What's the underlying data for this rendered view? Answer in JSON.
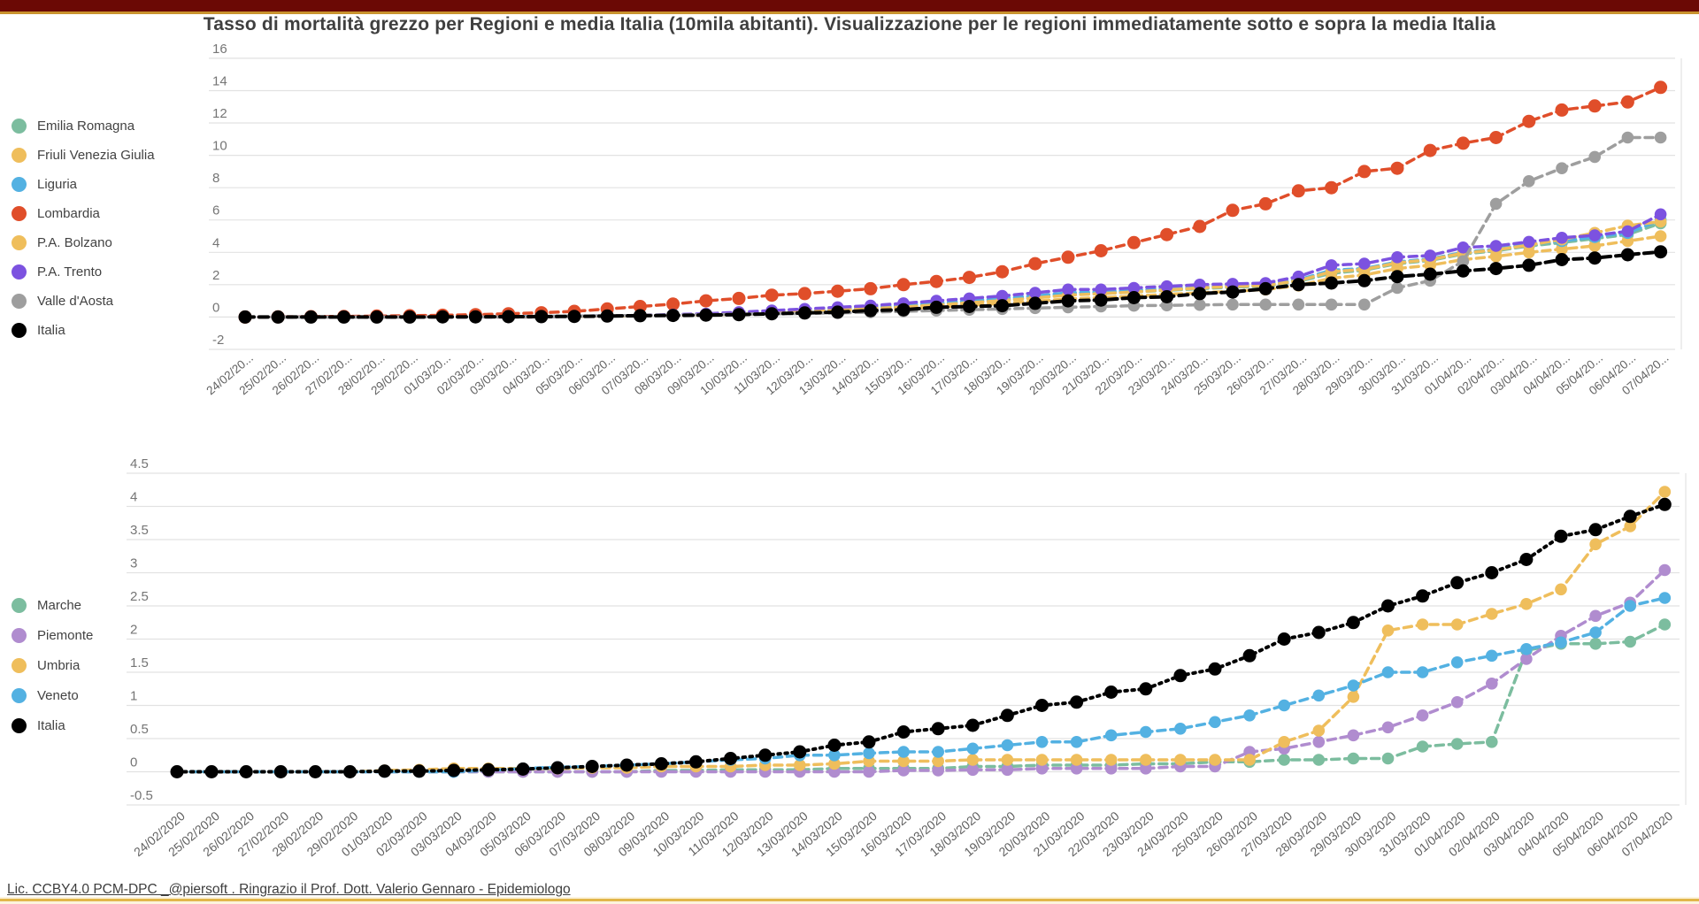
{
  "page": {
    "title": "Tasso di mortalità grezzo per Regioni e media Italia (10mila abitanti). Visualizzazione per le regioni immediatamente sotto e sopra la media Italia",
    "footer": "Lic. CCBY4.0 PCM-DPC _@piersoft . Ringrazio il Prof. Dott. Valerio Gennaro - Epidemiologo",
    "colors": {
      "top_bar": "#6B0905",
      "gold_line": "#C9932E",
      "bottom_strip": "#FCF3DC",
      "grid": "#E2E2E2",
      "axis_text": "#757575",
      "x_label_text": "#616161",
      "title_text": "#3F3F3F"
    }
  },
  "chart_data": [
    {
      "name": "top-chart",
      "type": "line",
      "title": "",
      "xlabel": "",
      "ylabel": "",
      "grid": true,
      "legend_position": "left",
      "marker": "circle",
      "line_style": "dashed",
      "ylim": [
        -2,
        16
      ],
      "yticks": [
        16,
        14,
        12,
        10,
        8,
        6,
        4,
        2,
        0,
        -2
      ],
      "categories": [
        "24/02/20...",
        "25/02/20...",
        "26/02/20...",
        "27/02/20...",
        "28/02/20...",
        "29/02/20...",
        "01/03/20...",
        "02/03/20...",
        "03/03/20...",
        "04/03/20...",
        "05/03/20...",
        "06/03/20...",
        "07/03/20...",
        "08/03/20...",
        "09/03/20...",
        "10/03/20...",
        "11/03/20...",
        "12/03/20...",
        "13/03/20...",
        "14/03/20...",
        "15/03/20...",
        "16/03/20...",
        "17/03/20...",
        "18/03/20...",
        "19/03/20...",
        "20/03/20...",
        "21/03/20...",
        "22/03/20...",
        "23/03/20...",
        "24/03/20...",
        "25/03/20...",
        "26/03/20...",
        "27/03/20...",
        "28/03/20...",
        "29/03/20...",
        "30/03/20...",
        "31/03/20...",
        "01/04/20...",
        "02/04/20...",
        "03/04/20...",
        "04/04/20...",
        "05/04/20...",
        "06/04/20...",
        "07/04/20..."
      ],
      "series": [
        {
          "name": "Emilia Romagna",
          "color": "#7CBD9F",
          "values": [
            0,
            0,
            0,
            0,
            0,
            0,
            0.01,
            0.02,
            0.03,
            0.04,
            0.05,
            0.07,
            0.09,
            0.12,
            0.16,
            0.2,
            0.28,
            0.36,
            0.45,
            0.55,
            0.65,
            0.78,
            0.9,
            1.05,
            1.2,
            1.38,
            1.45,
            1.55,
            1.65,
            1.75,
            1.85,
            1.9,
            2.2,
            2.7,
            2.9,
            3.3,
            3.5,
            3.9,
            4.1,
            4.4,
            4.6,
            4.85,
            5.1,
            5.8
          ]
        },
        {
          "name": "Friuli Venezia Giulia",
          "color": "#EFBE5C",
          "values": [
            0,
            0,
            0,
            0,
            0,
            0,
            0.01,
            0.01,
            0.02,
            0.03,
            0.04,
            0.06,
            0.08,
            0.1,
            0.13,
            0.17,
            0.22,
            0.28,
            0.35,
            0.43,
            0.52,
            0.62,
            0.72,
            0.85,
            0.98,
            1.12,
            1.2,
            1.3,
            1.4,
            1.5,
            1.6,
            1.7,
            1.95,
            2.4,
            2.6,
            3.0,
            3.2,
            3.55,
            3.75,
            4.0,
            4.2,
            4.4,
            4.7,
            5.0
          ]
        },
        {
          "name": "Liguria",
          "color": "#53B1E2",
          "values": [
            0,
            0,
            0,
            0,
            0,
            0,
            0.01,
            0.02,
            0.03,
            0.04,
            0.05,
            0.08,
            0.1,
            0.14,
            0.18,
            0.22,
            0.3,
            0.4,
            0.5,
            0.6,
            0.72,
            0.85,
            1.0,
            1.15,
            1.3,
            1.5,
            1.55,
            1.65,
            1.75,
            1.85,
            1.95,
            2.0,
            2.3,
            2.9,
            3.0,
            3.4,
            3.6,
            4.0,
            4.2,
            4.5,
            4.7,
            4.95,
            5.2,
            6.0
          ]
        },
        {
          "name": "Lombardia",
          "color": "#E04E2A",
          "values": [
            0.0,
            0.01,
            0.02,
            0.04,
            0.06,
            0.08,
            0.11,
            0.15,
            0.2,
            0.26,
            0.35,
            0.5,
            0.65,
            0.8,
            1.0,
            1.15,
            1.35,
            1.45,
            1.6,
            1.75,
            2.0,
            2.2,
            2.45,
            2.8,
            3.3,
            3.7,
            4.1,
            4.6,
            5.1,
            5.6,
            6.6,
            7.0,
            7.8,
            8.0,
            9.0,
            9.2,
            10.3,
            10.75,
            11.1,
            12.1,
            12.8,
            13.05,
            13.3,
            14.2
          ]
        },
        {
          "name": "P.A. Bolzano",
          "color": "#EFBE5C",
          "values": [
            0,
            0,
            0,
            0,
            0,
            0,
            0,
            0,
            0,
            0,
            0.05,
            0.07,
            0.1,
            0.13,
            0.17,
            0.22,
            0.28,
            0.35,
            0.43,
            0.52,
            0.62,
            0.75,
            0.88,
            1.02,
            1.18,
            1.35,
            1.45,
            1.55,
            1.68,
            1.8,
            1.9,
            1.95,
            2.25,
            2.8,
            2.95,
            3.35,
            3.55,
            3.95,
            4.15,
            4.45,
            4.8,
            5.2,
            5.65,
            5.9
          ]
        },
        {
          "name": "P.A. Trento",
          "color": "#7C52E0",
          "values": [
            0,
            0,
            0,
            0,
            0,
            0,
            0,
            0,
            0,
            0,
            0.05,
            0.08,
            0.1,
            0.15,
            0.2,
            0.3,
            0.4,
            0.5,
            0.6,
            0.7,
            0.85,
            1.0,
            1.15,
            1.3,
            1.5,
            1.7,
            1.7,
            1.8,
            1.9,
            2.0,
            2.05,
            2.1,
            2.5,
            3.2,
            3.3,
            3.7,
            3.8,
            4.3,
            4.4,
            4.65,
            4.9,
            5.05,
            5.3,
            6.35
          ]
        },
        {
          "name": "Valle d'Aosta",
          "color": "#9E9E9E",
          "values": [
            0,
            0,
            0,
            0,
            0,
            0,
            0,
            0,
            0,
            0,
            0.05,
            0.08,
            0.1,
            0.12,
            0.15,
            0.18,
            0.2,
            0.22,
            0.25,
            0.3,
            0.35,
            0.4,
            0.45,
            0.5,
            0.55,
            0.6,
            0.65,
            0.7,
            0.72,
            0.75,
            0.77,
            0.77,
            0.77,
            0.77,
            0.77,
            1.8,
            2.25,
            3.45,
            7.0,
            8.4,
            9.2,
            9.9,
            11.1,
            11.1
          ]
        },
        {
          "name": "Italia",
          "color": "#000000",
          "values": [
            0,
            0,
            0,
            0,
            0,
            0,
            0.01,
            0.01,
            0.02,
            0.03,
            0.04,
            0.06,
            0.08,
            0.1,
            0.12,
            0.15,
            0.2,
            0.25,
            0.3,
            0.4,
            0.45,
            0.6,
            0.65,
            0.7,
            0.85,
            1.0,
            1.05,
            1.2,
            1.25,
            1.45,
            1.55,
            1.75,
            2.0,
            2.1,
            2.25,
            2.5,
            2.65,
            2.85,
            3.0,
            3.2,
            3.55,
            3.65,
            3.85,
            4.03
          ]
        }
      ]
    },
    {
      "name": "bottom-chart",
      "type": "line",
      "title": "",
      "xlabel": "",
      "ylabel": "",
      "grid": true,
      "legend_position": "left",
      "marker": "circle",
      "line_style": "dashed",
      "ylim": [
        -0.5,
        4.5
      ],
      "yticks": [
        4.5,
        4,
        3.5,
        3,
        2.5,
        2,
        1.5,
        1,
        0.5,
        0,
        -0.5
      ],
      "categories": [
        "24/02/2020",
        "25/02/2020",
        "26/02/2020",
        "27/02/2020",
        "28/02/2020",
        "29/02/2020",
        "01/03/2020",
        "02/03/2020",
        "03/03/2020",
        "04/03/2020",
        "05/03/2020",
        "06/03/2020",
        "07/03/2020",
        "08/03/2020",
        "09/03/2020",
        "10/03/2020",
        "11/03/2020",
        "12/03/2020",
        "13/03/2020",
        "14/03/2020",
        "15/03/2020",
        "16/03/2020",
        "17/03/2020",
        "18/03/2020",
        "19/03/2020",
        "20/03/2020",
        "21/03/2020",
        "22/03/2020",
        "23/03/2020",
        "24/03/2020",
        "25/03/2020",
        "26/03/2020",
        "27/03/2020",
        "28/03/2020",
        "29/03/2020",
        "30/03/2020",
        "31/03/2020",
        "01/04/2020",
        "02/04/2020",
        "03/04/2020",
        "04/04/2020",
        "05/04/2020",
        "06/04/2020",
        "07/04/2020"
      ],
      "series": [
        {
          "name": "Marche",
          "color": "#7CBD9F",
          "values": [
            0,
            0,
            0,
            0,
            0,
            0,
            0,
            0,
            0,
            0,
            0,
            0,
            0,
            0,
            0.02,
            0.02,
            0.03,
            0.03,
            0.03,
            0.05,
            0.05,
            0.05,
            0.05,
            0.08,
            0.08,
            0.1,
            0.1,
            0.1,
            0.12,
            0.12,
            0.15,
            0.15,
            0.18,
            0.18,
            0.2,
            0.2,
            0.38,
            0.42,
            0.45,
            1.83,
            1.93,
            1.93,
            1.96,
            2.22
          ]
        },
        {
          "name": "Piemonte",
          "color": "#B08CCF",
          "values": [
            0,
            0,
            0,
            0,
            0,
            0,
            0,
            0,
            0,
            0,
            0,
            0,
            0,
            0,
            0,
            0,
            0,
            0,
            0,
            0,
            0,
            0.02,
            0.02,
            0.03,
            0.03,
            0.05,
            0.05,
            0.05,
            0.05,
            0.08,
            0.08,
            0.3,
            0.35,
            0.45,
            0.55,
            0.67,
            0.85,
            1.05,
            1.33,
            1.7,
            2.05,
            2.35,
            2.55,
            3.04
          ]
        },
        {
          "name": "Umbria",
          "color": "#EFBE5C",
          "values": [
            0,
            0,
            0,
            0,
            0,
            0,
            0.02,
            0.03,
            0.05,
            0.05,
            0.05,
            0.05,
            0.06,
            0.06,
            0.08,
            0.08,
            0.08,
            0.1,
            0.1,
            0.12,
            0.16,
            0.16,
            0.16,
            0.18,
            0.18,
            0.18,
            0.18,
            0.18,
            0.18,
            0.18,
            0.18,
            0.18,
            0.45,
            0.62,
            1.13,
            2.13,
            2.22,
            2.22,
            2.38,
            2.53,
            2.75,
            3.43,
            3.7,
            4.22
          ]
        },
        {
          "name": "Veneto",
          "color": "#53B1E2",
          "values": [
            0,
            0,
            0,
            0,
            0,
            0,
            0,
            0,
            0,
            0.02,
            0.05,
            0.07,
            0.08,
            0.1,
            0.12,
            0.15,
            0.18,
            0.2,
            0.25,
            0.25,
            0.28,
            0.3,
            0.3,
            0.35,
            0.4,
            0.45,
            0.45,
            0.55,
            0.6,
            0.65,
            0.75,
            0.85,
            1.0,
            1.15,
            1.3,
            1.5,
            1.5,
            1.65,
            1.75,
            1.85,
            1.95,
            2.1,
            2.5,
            2.62
          ]
        },
        {
          "name": "Italia",
          "color": "#000000",
          "values": [
            0,
            0,
            0,
            0,
            0,
            0,
            0.01,
            0.01,
            0.02,
            0.03,
            0.04,
            0.06,
            0.08,
            0.1,
            0.12,
            0.15,
            0.2,
            0.25,
            0.3,
            0.4,
            0.45,
            0.6,
            0.65,
            0.7,
            0.85,
            1.0,
            1.05,
            1.2,
            1.25,
            1.45,
            1.55,
            1.75,
            2.0,
            2.1,
            2.25,
            2.5,
            2.65,
            2.85,
            3.0,
            3.2,
            3.55,
            3.65,
            3.85,
            4.03
          ]
        }
      ]
    }
  ]
}
